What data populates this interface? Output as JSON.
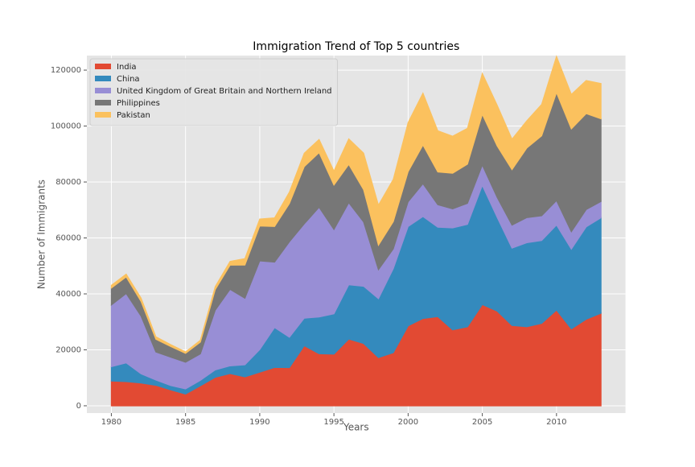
{
  "chart_data": {
    "type": "area",
    "title": "Immigration Trend of Top 5 countries",
    "x_label": "Years",
    "y_label": "Number of Immigrants",
    "x": [
      1980,
      1981,
      1982,
      1983,
      1984,
      1985,
      1986,
      1987,
      1988,
      1989,
      1990,
      1991,
      1992,
      1993,
      1994,
      1995,
      1996,
      1997,
      1998,
      1999,
      2000,
      2001,
      2002,
      2003,
      2004,
      2005,
      2006,
      2007,
      2008,
      2009,
      2010,
      2011,
      2012,
      2013
    ],
    "series": [
      {
        "name": "India",
        "color": "#E24A33",
        "values": [
          8880,
          8670,
          8147,
          7338,
          5704,
          4211,
          7150,
          10189,
          11522,
          10343,
          12041,
          13734,
          13673,
          21496,
          18620,
          18489,
          23859,
          22268,
          17241,
          18974,
          28572,
          31223,
          31889,
          27155,
          28235,
          36210,
          33848,
          28742,
          28261,
          29456,
          34235,
          27509,
          30933,
          33087
        ]
      },
      {
        "name": "China",
        "color": "#348ABD",
        "values": [
          5123,
          6682,
          3308,
          1863,
          1527,
          1816,
          1960,
          2643,
          2758,
          4323,
          8076,
          14255,
          10846,
          9817,
          13128,
          14398,
          19415,
          20475,
          21049,
          30069,
          35529,
          36434,
          31961,
          36439,
          36619,
          42584,
          33518,
          27642,
          30037,
          29622,
          30391,
          28502,
          33024,
          34129
        ]
      },
      {
        "name": "United Kingdom of Great Britain and Northern Ireland",
        "color": "#988ED5",
        "values": [
          22045,
          24796,
          20620,
          10015,
          10170,
          9564,
          9470,
          21337,
          27359,
          23795,
          31668,
          23380,
          34123,
          33720,
          39231,
          30145,
          29322,
          22965,
          10367,
          7045,
          8840,
          11728,
          8046,
          6797,
          7533,
          7258,
          7140,
          8216,
          8979,
          8876,
          8724,
          6204,
          6195,
          5827
        ]
      },
      {
        "name": "Philippines",
        "color": "#777777",
        "values": [
          6051,
          5921,
          5249,
          4562,
          3801,
          3150,
          4166,
          7360,
          8639,
          11865,
          12509,
          12718,
          13670,
          20479,
          19532,
          15864,
          13692,
          11549,
          8735,
          9734,
          10763,
          13836,
          11707,
          12758,
          14004,
          18139,
          18400,
          19837,
          24887,
          28573,
          38617,
          36765,
          34315,
          29544
        ]
      },
      {
        "name": "Pakistan",
        "color": "#FBC15E",
        "values": [
          978,
          972,
          1201,
          900,
          668,
          514,
          691,
          1072,
          1334,
          2261,
          2470,
          3079,
          4071,
          4777,
          4666,
          4994,
          9125,
          13073,
          14328,
          15114,
          17549,
          18526,
          14706,
          13226,
          12802,
          14602,
          14553,
          10880,
          9730,
          11232,
          12932,
          12328,
          11795,
          12603
        ]
      }
    ],
    "xlim": [
      1978.35,
      2014.65
    ],
    "xticks": [
      1980,
      1985,
      1990,
      1995,
      2000,
      2005,
      2010
    ],
    "ylim": [
      -2600,
      125200
    ],
    "yticks": [
      0,
      20000,
      40000,
      60000,
      80000,
      100000,
      120000
    ],
    "grid": true,
    "legend": "upper left"
  }
}
